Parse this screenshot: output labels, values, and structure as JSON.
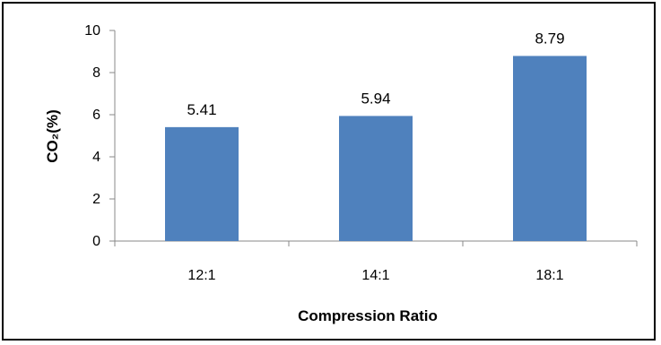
{
  "chart_data": {
    "type": "bar",
    "categories": [
      "12:1",
      "14:1",
      "18:1"
    ],
    "values": [
      5.41,
      5.94,
      8.79
    ],
    "data_labels": [
      "5.41",
      "5.94",
      "8.79"
    ],
    "title": "",
    "xlabel": "Compression Ratio",
    "ylabel": "CO₂(%)",
    "ylim": [
      0,
      10
    ],
    "yticks": [
      "0",
      "2",
      "4",
      "6",
      "8",
      "10"
    ],
    "ytick_values": [
      0,
      2,
      4,
      6,
      8,
      10
    ],
    "grid": false,
    "legend": "none",
    "bar_color": "#4F81BD"
  }
}
